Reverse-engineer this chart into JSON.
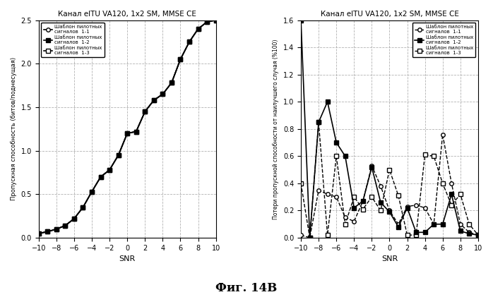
{
  "title": "Канал eITU VA120, 1x2 SM, MMSE CE",
  "snr": [
    -10,
    -9,
    -8,
    -7,
    -6,
    -5,
    -4,
    -3,
    -2,
    -1,
    0,
    1,
    2,
    3,
    4,
    5,
    6,
    7,
    8,
    9,
    10
  ],
  "left_ylabel": "Пропускная способность (битов/поднесущая)",
  "right_ylabel": "Потери пропускной способности от наилучшего случая (%100)",
  "xlabel": "SNR",
  "left_ylim": [
    0,
    2.5
  ],
  "right_ylim": [
    0,
    1.6
  ],
  "left_yticks": [
    0,
    0.5,
    1.0,
    1.5,
    2.0,
    2.5
  ],
  "right_yticks": [
    0,
    0.2,
    0.4,
    0.6,
    0.8,
    1.0,
    1.2,
    1.4,
    1.6
  ],
  "xticks": [
    -10,
    -8,
    -6,
    -4,
    -2,
    0,
    2,
    4,
    6,
    8,
    10
  ],
  "legend_label_text": "Шаблон пилотных\nсигналов",
  "legend_ids": [
    "1-1",
    "1-2",
    "1-3"
  ],
  "left_curves": {
    "c1": [
      0.05,
      0.07,
      0.1,
      0.14,
      0.22,
      0.35,
      0.53,
      0.7,
      0.78,
      0.95,
      1.2,
      1.22,
      1.45,
      1.58,
      1.65,
      1.78,
      2.05,
      2.25,
      2.4,
      2.48,
      2.5
    ],
    "c2": [
      0.05,
      0.07,
      0.1,
      0.14,
      0.22,
      0.35,
      0.53,
      0.7,
      0.78,
      0.95,
      1.2,
      1.22,
      1.45,
      1.58,
      1.65,
      1.78,
      2.05,
      2.25,
      2.4,
      2.48,
      2.5
    ],
    "c3": [
      0.05,
      0.07,
      0.1,
      0.14,
      0.22,
      0.35,
      0.53,
      0.7,
      0.78,
      0.95,
      1.2,
      1.22,
      1.45,
      1.58,
      1.65,
      1.78,
      2.05,
      2.25,
      2.4,
      2.48,
      2.5
    ]
  },
  "right_curves": {
    "c1": [
      0.02,
      0.0,
      0.35,
      0.32,
      0.3,
      0.15,
      0.12,
      0.27,
      0.53,
      0.38,
      0.2,
      0.1,
      0.23,
      0.24,
      0.22,
      0.1,
      0.76,
      0.4,
      0.1,
      0.04,
      0.02
    ],
    "c2": [
      1.6,
      0.0,
      0.85,
      1.0,
      0.7,
      0.6,
      0.22,
      0.27,
      0.52,
      0.26,
      0.19,
      0.08,
      0.22,
      0.04,
      0.04,
      0.1,
      0.1,
      0.32,
      0.05,
      0.03,
      0.02
    ],
    "c3": [
      0.4,
      0.0,
      0.85,
      0.02,
      0.6,
      0.1,
      0.3,
      0.21,
      0.3,
      0.2,
      0.5,
      0.31,
      0.02,
      0.02,
      0.61,
      0.6,
      0.4,
      0.24,
      0.32,
      0.1,
      0.02
    ]
  },
  "fig_label": "Фиг. 14B",
  "background_color": "#ffffff",
  "grid_color": "#aaaaaa"
}
